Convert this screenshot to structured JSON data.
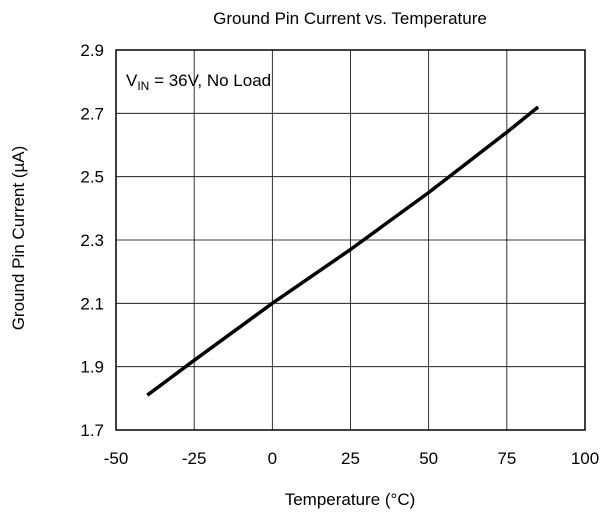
{
  "chart_data": {
    "type": "line",
    "title": "Ground Pin Current vs. Temperature",
    "xlabel": "Temperature (°C)",
    "ylabel": "Ground Pin Current (µA)",
    "xlim": [
      -50,
      100
    ],
    "ylim": [
      1.7,
      2.9
    ],
    "xticks": [
      -50,
      -25,
      0,
      25,
      50,
      75,
      100
    ],
    "yticks": [
      1.7,
      1.9,
      2.1,
      2.3,
      2.5,
      2.7,
      2.9
    ],
    "xtick_labels": [
      "-50",
      "-25",
      "0",
      "25",
      "50",
      "75",
      "100"
    ],
    "ytick_labels": [
      "1.7",
      "1.9",
      "2.1",
      "2.3",
      "2.5",
      "2.7",
      "2.9"
    ],
    "grid": true,
    "annotation": {
      "main": "V",
      "subscript": "IN",
      "rest": " = 36V, No Load"
    },
    "series": [
      {
        "x": [
          -40,
          -25,
          0,
          25,
          50,
          75,
          85
        ],
        "y": [
          1.81,
          1.92,
          2.1,
          2.27,
          2.45,
          2.64,
          2.72
        ]
      }
    ],
    "colors": {
      "line": "#000000",
      "grid": "#000000",
      "frame": "#000000"
    }
  }
}
